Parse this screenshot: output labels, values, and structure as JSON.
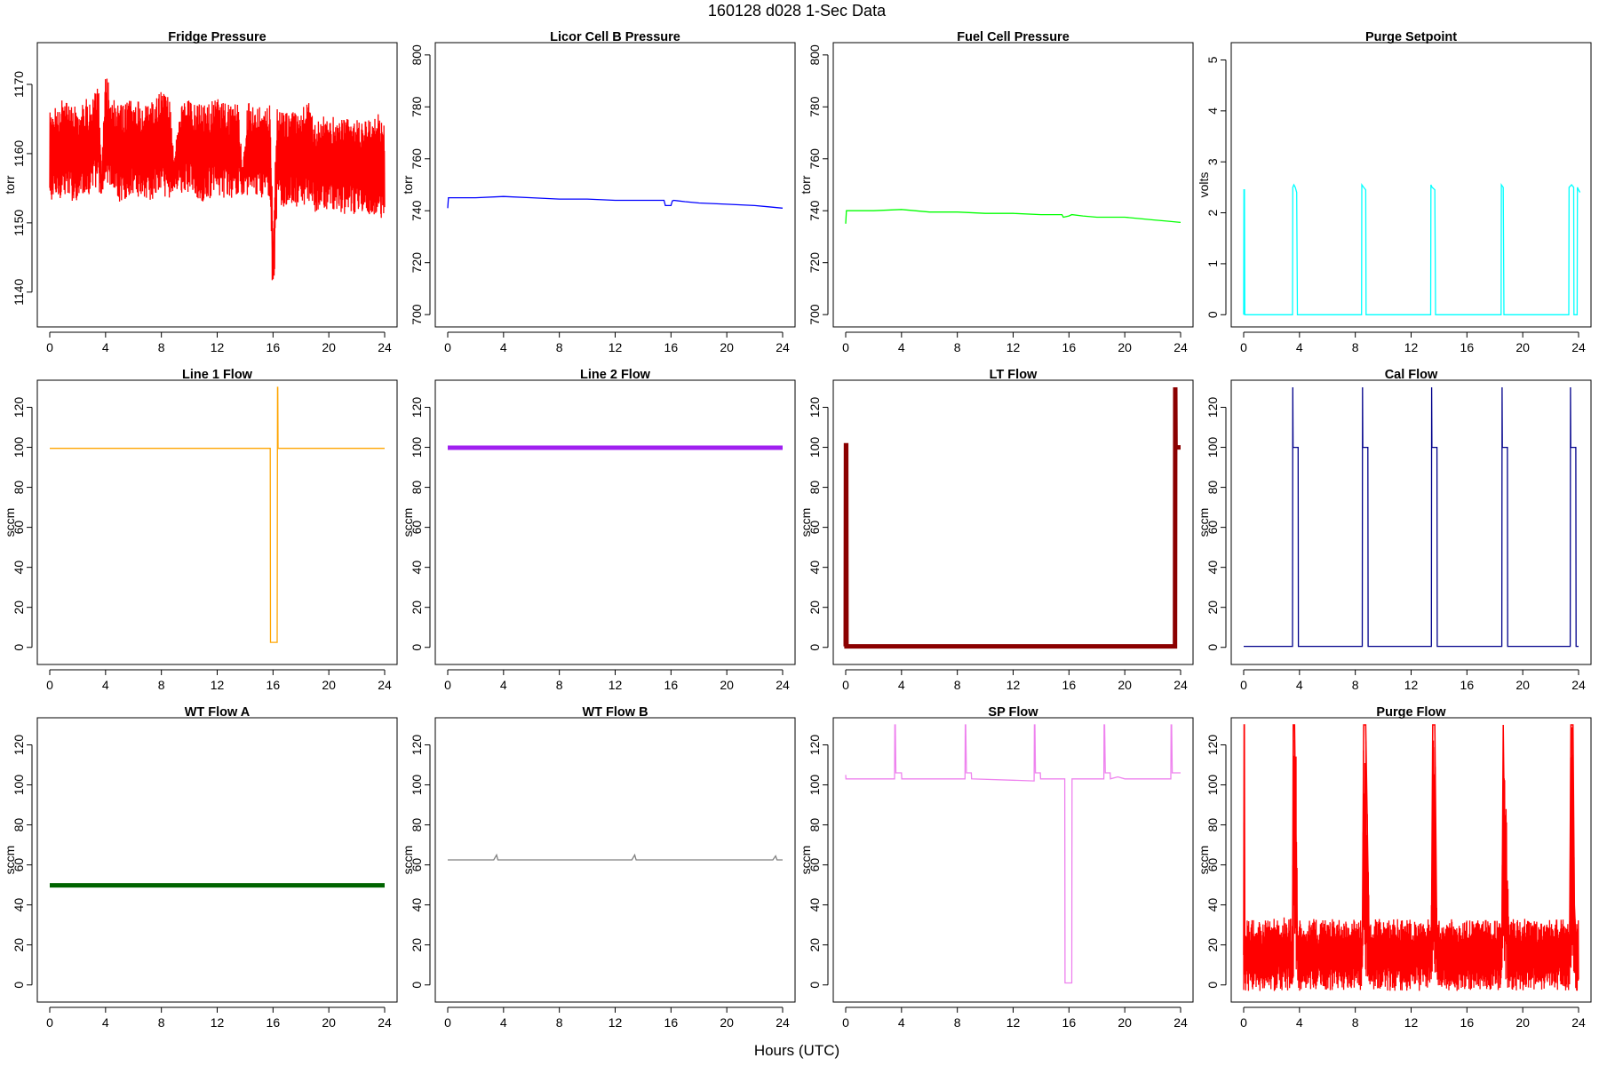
{
  "figure": {
    "title": "160128   d028   1-Sec Data",
    "xlabel": "Hours (UTC)"
  },
  "chart_data": [
    {
      "type": "line",
      "title": "Fridge Pressure",
      "ylabel": "torr",
      "color": "#ff0000",
      "xlim": [
        0,
        24
      ],
      "ylim": [
        1136,
        1175
      ],
      "xticks": [
        0,
        4,
        8,
        12,
        16,
        20,
        24
      ],
      "yticks": [
        1140,
        1150,
        1160,
        1170
      ],
      "style": "noisy-band",
      "x": [
        0,
        0.5,
        1,
        1.5,
        2,
        2.5,
        3,
        3.5,
        3.7,
        4,
        4.5,
        5,
        6,
        7,
        8,
        8.6,
        8.9,
        9.5,
        10,
        11,
        12,
        13,
        13.5,
        13.8,
        14.2,
        15,
        15.5,
        15.8,
        16.0,
        16.3,
        16.6,
        17,
        18,
        18.5,
        19,
        20,
        21,
        22,
        23,
        23.5,
        24
      ],
      "y": [
        1159,
        1160,
        1161,
        1160,
        1160,
        1161,
        1161,
        1162,
        1155,
        1163,
        1161,
        1160,
        1161,
        1160,
        1161,
        1160,
        1158,
        1161,
        1161,
        1160,
        1161,
        1160,
        1161,
        1156,
        1161,
        1160,
        1161,
        1160,
        1143,
        1160,
        1159,
        1159,
        1159,
        1160,
        1158,
        1159,
        1158,
        1158,
        1158,
        1158,
        1157
      ],
      "band_low": [
        1152,
        1153,
        1154,
        1153,
        1153,
        1154,
        1154,
        1155,
        1153,
        1156,
        1154,
        1153,
        1154,
        1153,
        1154,
        1153,
        1155,
        1154,
        1154,
        1153,
        1154,
        1153,
        1154,
        1154,
        1154,
        1153,
        1154,
        1153,
        1137,
        1153,
        1152,
        1152,
        1152,
        1153,
        1151,
        1152,
        1151,
        1151,
        1151,
        1151,
        1150
      ],
      "band_high": [
        1166,
        1167,
        1168,
        1167,
        1167,
        1168,
        1168,
        1170,
        1157,
        1172,
        1168,
        1167,
        1168,
        1167,
        1169,
        1168,
        1160,
        1168,
        1168,
        1167,
        1168,
        1167,
        1169,
        1158,
        1168,
        1167,
        1168,
        1167,
        1150,
        1167,
        1166,
        1166,
        1166,
        1168,
        1165,
        1166,
        1165,
        1165,
        1165,
        1166,
        1164
      ]
    },
    {
      "type": "line",
      "title": "Licor Cell B Pressure",
      "ylabel": "torr",
      "color": "#0000ff",
      "xlim": [
        0,
        24
      ],
      "ylim": [
        698,
        802
      ],
      "xticks": [
        0,
        4,
        8,
        12,
        16,
        20,
        24
      ],
      "yticks": [
        700,
        720,
        740,
        760,
        780,
        800
      ],
      "style": "line",
      "x": [
        0,
        0.05,
        0.1,
        2,
        4,
        6,
        8,
        10,
        12,
        14,
        15.5,
        15.6,
        15.7,
        16.0,
        16.1,
        16.2,
        17,
        18,
        20,
        22,
        23,
        24
      ],
      "y": [
        741,
        745,
        745,
        745,
        745.5,
        745,
        744.5,
        744.5,
        744,
        744,
        744,
        742,
        742,
        742,
        743.8,
        744,
        743.5,
        743,
        742.5,
        742,
        741.5,
        741
      ]
    },
    {
      "type": "line",
      "title": "Fuel Cell Pressure",
      "ylabel": "torr",
      "color": "#00ff00",
      "xlim": [
        0,
        24
      ],
      "ylim": [
        698,
        802
      ],
      "xticks": [
        0,
        4,
        8,
        12,
        16,
        20,
        24
      ],
      "yticks": [
        700,
        720,
        740,
        760,
        780,
        800
      ],
      "style": "line",
      "x": [
        0,
        0.05,
        0.1,
        2,
        4,
        6,
        8,
        10,
        12,
        14,
        15.5,
        15.6,
        16.0,
        16.2,
        17,
        18,
        19,
        20,
        21,
        22,
        23,
        24
      ],
      "y": [
        735,
        740,
        740,
        740,
        740.5,
        739.5,
        739.5,
        739,
        739,
        738.5,
        738.5,
        737.5,
        738,
        738.5,
        738,
        737.5,
        737.5,
        737.5,
        737,
        736.5,
        736,
        735.5
      ]
    },
    {
      "type": "line",
      "title": "Purge Setpoint",
      "ylabel": "volts",
      "color": "#00ffff",
      "xlim": [
        0,
        24
      ],
      "ylim": [
        -0.1,
        5.2
      ],
      "xticks": [
        0,
        4,
        8,
        12,
        16,
        20,
        24
      ],
      "yticks": [
        0,
        1,
        2,
        3,
        4,
        5
      ],
      "style": "line",
      "x": [
        0,
        0.02,
        0.06,
        0.08,
        3.5,
        3.52,
        3.6,
        3.7,
        3.8,
        3.85,
        8.45,
        8.47,
        8.6,
        8.75,
        8.77,
        13.4,
        13.42,
        13.5,
        13.7,
        13.75,
        18.45,
        18.47,
        18.6,
        18.65,
        23.3,
        23.32,
        23.5,
        23.65,
        23.67,
        23.9,
        23.92,
        24,
        24.1
      ],
      "y": [
        0,
        2.45,
        2.45,
        0,
        0,
        2.5,
        2.55,
        2.5,
        2.4,
        0,
        0,
        2.55,
        2.5,
        2.45,
        0,
        0,
        2.55,
        2.5,
        2.45,
        0,
        0,
        2.55,
        2.5,
        0,
        0,
        2.5,
        2.55,
        2.5,
        0,
        0,
        2.5,
        2.45,
        2.4
      ]
    },
    {
      "type": "line",
      "title": "Line 1 Flow",
      "ylabel": "sccm",
      "color": "#ffa500",
      "xlim": [
        0,
        24
      ],
      "ylim": [
        -5,
        130
      ],
      "xticks": [
        0,
        4,
        8,
        12,
        16,
        20,
        24
      ],
      "yticks": [
        0,
        20,
        40,
        60,
        80,
        100,
        120
      ],
      "style": "line",
      "x": [
        0,
        15.8,
        15.82,
        16.3,
        16.32,
        16.34,
        16.36,
        24
      ],
      "y": [
        99.5,
        99.5,
        2.5,
        2.5,
        130,
        130,
        99.5,
        99.5
      ]
    },
    {
      "type": "line",
      "title": "Line 2 Flow",
      "ylabel": "sccm",
      "color": "#a020f0",
      "xlim": [
        0,
        24
      ],
      "ylim": [
        -5,
        130
      ],
      "xticks": [
        0,
        4,
        8,
        12,
        16,
        20,
        24
      ],
      "yticks": [
        0,
        20,
        40,
        60,
        80,
        100,
        120
      ],
      "style": "thick",
      "x": [
        0,
        24
      ],
      "y": [
        99.8,
        99.8
      ]
    },
    {
      "type": "line",
      "title": "LT Flow",
      "ylabel": "sccm",
      "color": "#8b0000",
      "xlim": [
        0,
        24
      ],
      "ylim": [
        -5,
        130
      ],
      "xticks": [
        0,
        4,
        8,
        12,
        16,
        20,
        24
      ],
      "yticks": [
        0,
        20,
        40,
        60,
        80,
        100,
        120
      ],
      "style": "thick",
      "x": [
        0,
        0.02,
        0.04,
        0.06,
        23.6,
        23.62,
        23.64,
        24
      ],
      "y": [
        0.5,
        101,
        101,
        0.5,
        0.5,
        130,
        100,
        100
      ]
    },
    {
      "type": "line",
      "title": "Cal Flow",
      "ylabel": "sccm",
      "color": "#00008b",
      "xlim": [
        0,
        24
      ],
      "ylim": [
        -5,
        130
      ],
      "xticks": [
        0,
        4,
        8,
        12,
        16,
        20,
        24
      ],
      "yticks": [
        0,
        20,
        40,
        60,
        80,
        100,
        120
      ],
      "style": "line",
      "x": [
        0,
        3.5,
        3.52,
        3.54,
        3.9,
        3.92,
        8.5,
        8.52,
        8.54,
        8.9,
        8.92,
        13.45,
        13.47,
        13.49,
        13.85,
        13.87,
        18.5,
        18.52,
        18.54,
        18.9,
        18.92,
        23.4,
        23.42,
        23.44,
        23.8,
        23.82,
        24
      ],
      "y": [
        0.5,
        0.5,
        130,
        100,
        100,
        0.5,
        0.5,
        130,
        100,
        100,
        0.5,
        0.5,
        130,
        100,
        100,
        0.5,
        0.5,
        130,
        100,
        100,
        0.5,
        0.5,
        130,
        100,
        100,
        0.5,
        0.5
      ]
    },
    {
      "type": "line",
      "title": "WT Flow A",
      "ylabel": "sccm",
      "color": "#006400",
      "xlim": [
        0,
        24
      ],
      "ylim": [
        -5,
        130
      ],
      "xticks": [
        0,
        4,
        8,
        12,
        16,
        20,
        24
      ],
      "yticks": [
        0,
        20,
        40,
        60,
        80,
        100,
        120
      ],
      "style": "thick",
      "x": [
        0,
        24
      ],
      "y": [
        49.8,
        49.8
      ]
    },
    {
      "type": "line",
      "title": "WT Flow B",
      "ylabel": "sccm",
      "color": "#808080",
      "xlim": [
        0,
        24
      ],
      "ylim": [
        -5,
        130
      ],
      "xticks": [
        0,
        4,
        8,
        12,
        16,
        20,
        24
      ],
      "yticks": [
        0,
        20,
        40,
        60,
        80,
        100,
        120
      ],
      "style": "line",
      "x": [
        0,
        3.3,
        3.5,
        3.6,
        6,
        10,
        13.2,
        13.4,
        13.5,
        16,
        20,
        23.3,
        23.5,
        23.6,
        24
      ],
      "y": [
        62.5,
        62.5,
        65,
        62.5,
        62.5,
        62.5,
        62.5,
        65,
        62.5,
        62.5,
        62.5,
        62.5,
        64.5,
        62.5,
        62.5
      ]
    },
    {
      "type": "line",
      "title": "SP Flow",
      "ylabel": "sccm",
      "color": "#ee82ee",
      "xlim": [
        0,
        24
      ],
      "ylim": [
        -5,
        130
      ],
      "xticks": [
        0,
        4,
        8,
        12,
        16,
        20,
        24
      ],
      "yticks": [
        0,
        20,
        40,
        60,
        80,
        100,
        120
      ],
      "style": "line",
      "x": [
        0,
        0.02,
        0.04,
        3.5,
        3.52,
        3.56,
        3.6,
        4.0,
        4.02,
        8.55,
        8.57,
        8.6,
        8.65,
        9.0,
        9.02,
        13.5,
        13.52,
        13.56,
        13.6,
        13.95,
        13.97,
        15.7,
        15.72,
        16.2,
        16.22,
        18.5,
        18.52,
        18.56,
        18.6,
        18.95,
        18.97,
        19.5,
        20,
        23.3,
        23.32,
        23.36,
        23.4,
        24
      ],
      "y": [
        105,
        103,
        103,
        103,
        130,
        130,
        106,
        106,
        103,
        103,
        130,
        130,
        106,
        106,
        103,
        102,
        130,
        130,
        106,
        106,
        103,
        103,
        1,
        1,
        103,
        103,
        130,
        130,
        106,
        106,
        103,
        104,
        103,
        103,
        130,
        130,
        106,
        106
      ]
    },
    {
      "type": "line",
      "title": "Purge Flow",
      "ylabel": "sccm",
      "color": "#ff0000",
      "xlim": [
        0,
        24
      ],
      "ylim": [
        -5,
        130
      ],
      "xticks": [
        0,
        4,
        8,
        12,
        16,
        20,
        24
      ],
      "yticks": [
        0,
        20,
        40,
        60,
        80,
        100,
        120
      ],
      "style": "noisy-band",
      "x": [
        0,
        0.03,
        0.05,
        0.08,
        1,
        2,
        3,
        3.5,
        3.55,
        3.65,
        3.75,
        3.85,
        5,
        6,
        7,
        8,
        8.5,
        8.6,
        8.75,
        9,
        10,
        11,
        12,
        13,
        13.45,
        13.55,
        13.7,
        13.85,
        15,
        16,
        17,
        18,
        18.5,
        18.6,
        18.7,
        19,
        20,
        21,
        22,
        23,
        23.35,
        23.45,
        23.6,
        23.7,
        23.85,
        24
      ],
      "y": [
        15,
        130,
        130,
        15,
        15,
        15,
        15,
        15,
        130,
        130,
        70,
        15,
        15,
        15,
        15,
        15,
        15,
        130,
        130,
        15,
        15,
        15,
        15,
        15,
        15,
        130,
        130,
        15,
        15,
        15,
        15,
        15,
        15,
        130,
        70,
        15,
        15,
        15,
        15,
        15,
        15,
        130,
        130,
        40,
        15,
        15
      ],
      "band_low": [
        -3,
        0,
        0,
        -3,
        -3,
        -3,
        -3,
        -3,
        0,
        0,
        0,
        -3,
        -3,
        -3,
        -3,
        -3,
        -3,
        0,
        0,
        -3,
        -3,
        -3,
        -3,
        -3,
        -3,
        0,
        0,
        -3,
        -3,
        -3,
        -3,
        -3,
        -3,
        0,
        0,
        -3,
        -3,
        -3,
        -3,
        -3,
        -3,
        0,
        0,
        0,
        -3,
        -3
      ],
      "band_high": [
        33,
        130,
        130,
        33,
        33,
        33,
        34,
        33,
        130,
        130,
        130,
        33,
        33,
        33,
        33,
        33,
        33,
        130,
        130,
        33,
        33,
        33,
        33,
        33,
        33,
        130,
        130,
        33,
        33,
        33,
        33,
        33,
        33,
        130,
        130,
        33,
        33,
        33,
        33,
        33,
        33,
        130,
        130,
        44,
        33,
        33
      ]
    }
  ]
}
